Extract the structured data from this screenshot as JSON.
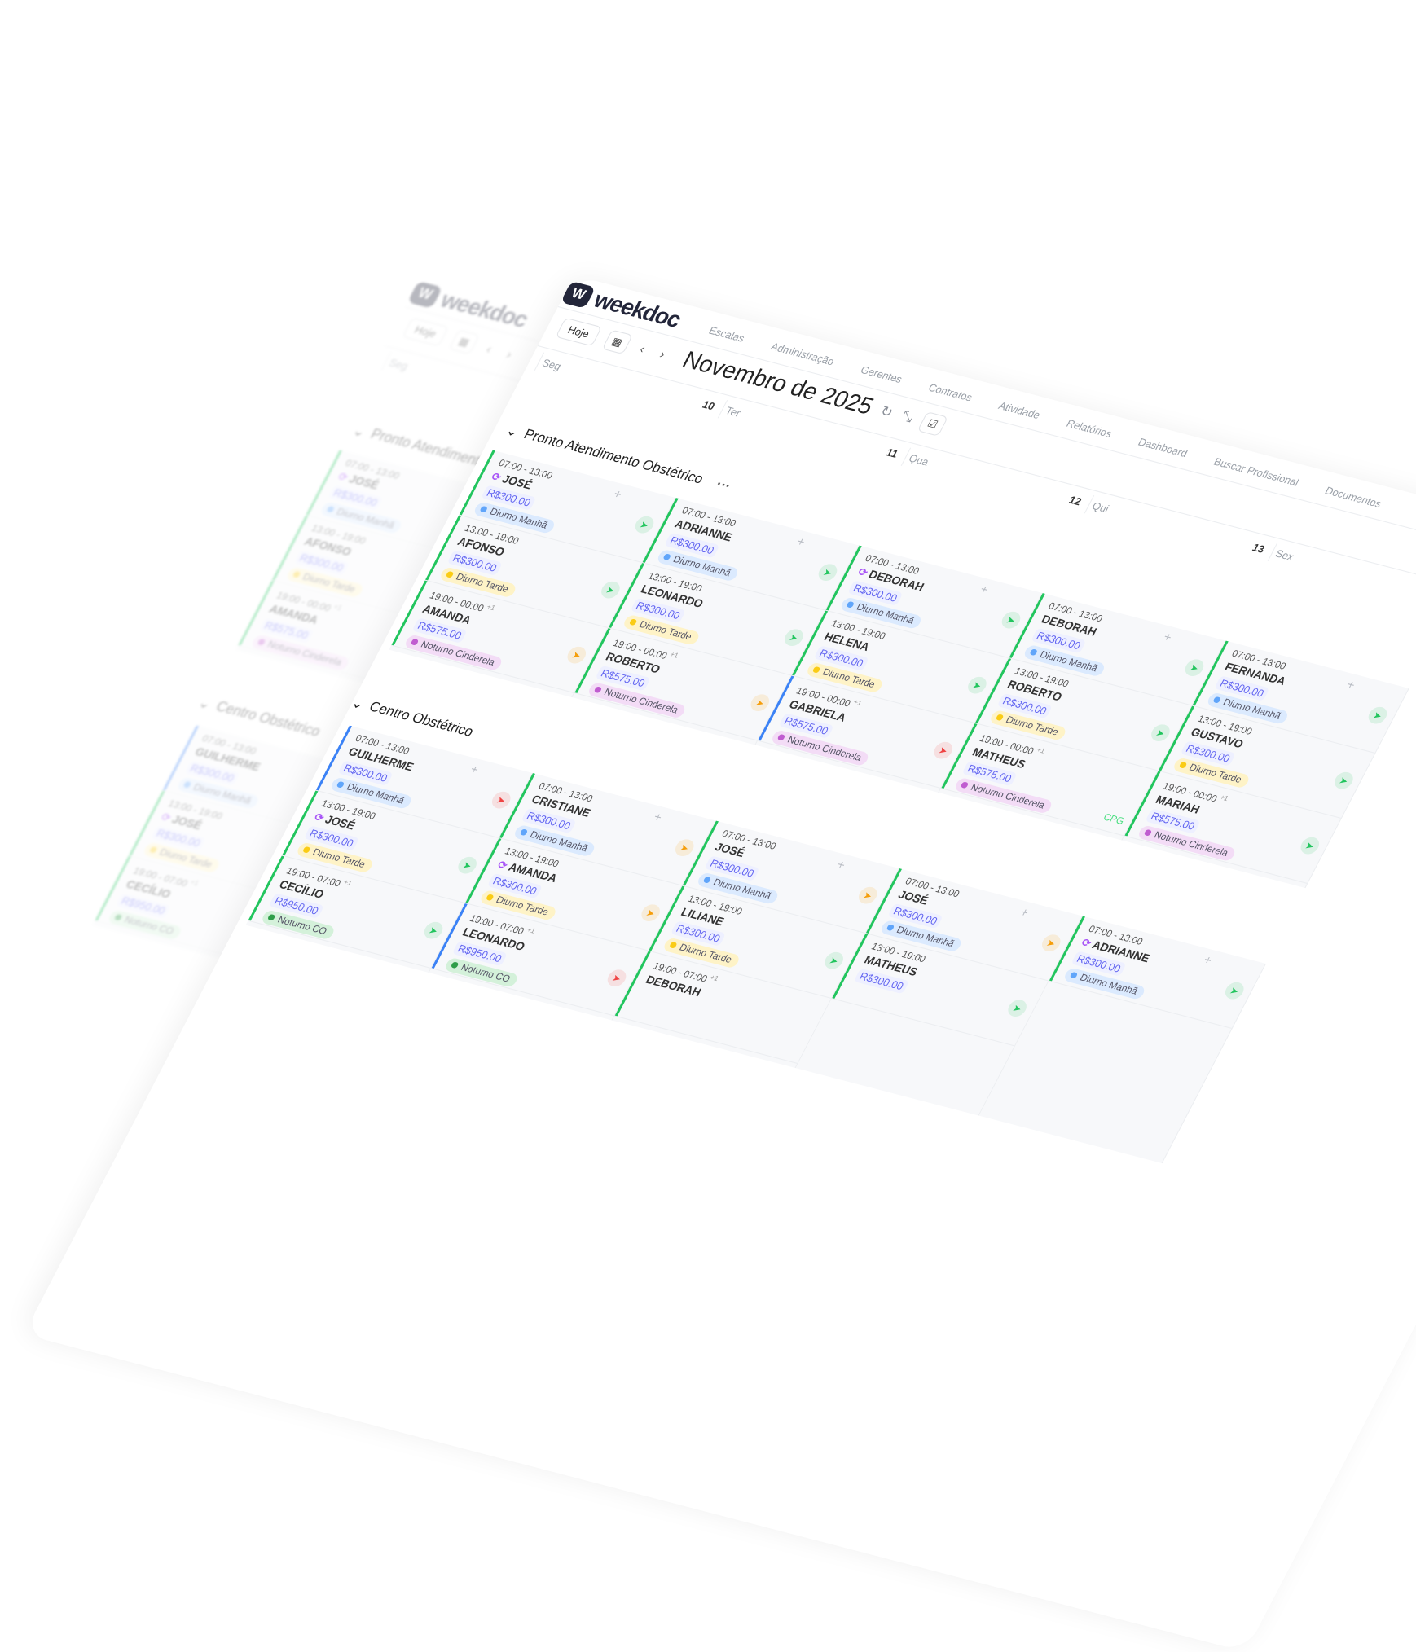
{
  "app": {
    "logo_mark": "W",
    "logo_text": "weekdoc"
  },
  "nav": [
    "Escalas",
    "Administração",
    "Gerentes",
    "Contratos",
    "Atividade",
    "Relatórios",
    "Dashboard",
    "Buscar Profissional",
    "Documentos"
  ],
  "toolbar": {
    "today": "Hoje",
    "prev": "‹",
    "next": "›",
    "title": "Novembro de 2025",
    "icons": [
      "calendar-icon",
      "refresh-icon",
      "compress-icon",
      "checklist-icon"
    ]
  },
  "days": [
    {
      "weekday": "Seg",
      "day": "10"
    },
    {
      "weekday": "Ter",
      "day": "11"
    },
    {
      "weekday": "Qua",
      "day": "12"
    },
    {
      "weekday": "Qui",
      "day": "13"
    },
    {
      "weekday": "Sex",
      "day": ""
    }
  ],
  "colors": {
    "green": "#22c55e",
    "blue": "#3b82f6",
    "orange": "#f59e0b",
    "red": "#ef4444",
    "tag_manha_bg": "#dbeafe",
    "tag_manha_dot": "#60a5fa",
    "tag_tarde_bg": "#fef3c7",
    "tag_tarde_dot": "#facc15",
    "tag_cinderela_bg": "#f3dcf6",
    "tag_cinderela_dot": "#c05cd0",
    "tag_co_bg": "#d4f1da",
    "tag_co_dot": "#2e9e48"
  },
  "sections": [
    {
      "title": "Pronto Atendimento Obstétrico",
      "more": "···",
      "columns": [
        {
          "shifts": [
            {
              "time": "07:00 - 13:00",
              "name": "JOSÉ",
              "swap": true,
              "price": "R$300.00",
              "tag": "Diurno Manhã",
              "kind": "manha",
              "bar": "green",
              "action": "green"
            },
            {
              "time": "13:00 - 19:00",
              "name": "AFONSO",
              "price": "R$300.00",
              "tag": "Diurno Tarde",
              "kind": "tarde",
              "bar": "green",
              "action": "green"
            },
            {
              "time": "19:00 - 00:00",
              "plus": "+1",
              "name": "AMANDA",
              "price": "R$575.00",
              "tag": "Noturno Cinderela",
              "kind": "cinderela",
              "bar": "green",
              "action": "orange"
            }
          ]
        },
        {
          "shifts": [
            {
              "time": "07:00 - 13:00",
              "name": "ADRIANNE",
              "price": "R$300.00",
              "tag": "Diurno Manhã",
              "kind": "manha",
              "bar": "green",
              "action": "green"
            },
            {
              "time": "13:00 - 19:00",
              "name": "LEONARDO",
              "price": "R$300.00",
              "tag": "Diurno Tarde",
              "kind": "tarde",
              "bar": "green",
              "action": "green"
            },
            {
              "time": "19:00 - 00:00",
              "plus": "+1",
              "name": "ROBERTO",
              "price": "R$575.00",
              "tag": "Noturno Cinderela",
              "kind": "cinderela",
              "bar": "green",
              "action": "orange"
            }
          ]
        },
        {
          "shifts": [
            {
              "time": "07:00 - 13:00",
              "name": "DEBORAH",
              "swap": true,
              "price": "R$300.00",
              "tag": "Diurno Manhã",
              "kind": "manha",
              "bar": "green",
              "action": "green"
            },
            {
              "time": "13:00 - 19:00",
              "name": "HELENA",
              "price": "R$300.00",
              "tag": "Diurno Tarde",
              "kind": "tarde",
              "bar": "green",
              "action": "green"
            },
            {
              "time": "19:00 - 00:00",
              "plus": "+1",
              "name": "GABRIELA",
              "price": "R$575.00",
              "tag": "Noturno Cinderela",
              "kind": "cinderela",
              "bar": "blue",
              "action": "red"
            }
          ]
        },
        {
          "shifts": [
            {
              "time": "07:00 - 13:00",
              "name": "DEBORAH",
              "price": "R$300.00",
              "tag": "Diurno Manhã",
              "kind": "manha",
              "bar": "green",
              "action": "green"
            },
            {
              "time": "13:00 - 19:00",
              "name": "ROBERTO",
              "price": "R$300.00",
              "tag": "Diurno Tarde",
              "kind": "tarde",
              "bar": "green",
              "action": "green"
            },
            {
              "time": "19:00 - 00:00",
              "plus": "+1",
              "name": "MATHEUS",
              "price": "R$575.00",
              "tag": "Noturno Cinderela",
              "kind": "cinderela",
              "bar": "green",
              "badge": "CPG"
            }
          ]
        },
        {
          "shifts": [
            {
              "time": "07:00 - 13:00",
              "name": "FERNANDA",
              "price": "R$300.00",
              "tag": "Diurno Manhã",
              "kind": "manha",
              "bar": "green",
              "action": "green"
            },
            {
              "time": "13:00 - 19:00",
              "name": "GUSTAVO",
              "price": "R$300.00",
              "tag": "Diurno Tarde",
              "kind": "tarde",
              "bar": "green",
              "action": "green"
            },
            {
              "time": "19:00 - 00:00",
              "plus": "+1",
              "name": "MARIAH",
              "price": "R$575.00",
              "tag": "Noturno Cinderela",
              "kind": "cinderela",
              "bar": "green",
              "action": "green"
            }
          ]
        }
      ]
    },
    {
      "title": "Centro Obstétrico",
      "columns": [
        {
          "shifts": [
            {
              "time": "07:00 - 13:00",
              "name": "GUILHERME",
              "price": "R$300.00",
              "tag": "Diurno Manhã",
              "kind": "manha",
              "bar": "blue",
              "action": "red"
            },
            {
              "time": "13:00 - 19:00",
              "name": "JOSÉ",
              "swap": true,
              "price": "R$300.00",
              "tag": "Diurno Tarde",
              "kind": "tarde",
              "bar": "green",
              "action": "green"
            },
            {
              "time": "19:00 - 07:00",
              "plus": "+1",
              "name": "CECÍLIO",
              "price": "R$950.00",
              "tag": "Noturno CO",
              "kind": "co",
              "bar": "green",
              "action": "green"
            }
          ]
        },
        {
          "shifts": [
            {
              "time": "07:00 - 13:00",
              "name": "CRISTIANE",
              "price": "R$300.00",
              "tag": "Diurno Manhã",
              "kind": "manha",
              "bar": "green",
              "action": "orange"
            },
            {
              "time": "13:00 - 19:00",
              "name": "AMANDA",
              "swap": true,
              "price": "R$300.00",
              "tag": "Diurno Tarde",
              "kind": "tarde",
              "bar": "green",
              "action": "orange"
            },
            {
              "time": "19:00 - 07:00",
              "plus": "+1",
              "name": "LEONARDO",
              "price": "R$950.00",
              "tag": "Noturno CO",
              "kind": "co",
              "bar": "blue",
              "action": "red"
            }
          ]
        },
        {
          "shifts": [
            {
              "time": "07:00 - 13:00",
              "name": "JOSÉ",
              "price": "R$300.00",
              "tag": "Diurno Manhã",
              "kind": "manha",
              "bar": "green",
              "action": "orange"
            },
            {
              "time": "13:00 - 19:00",
              "name": "LILIANE",
              "price": "R$300.00",
              "tag": "Diurno Tarde",
              "kind": "tarde",
              "bar": "green",
              "action": "green"
            },
            {
              "time": "19:00 - 07:00",
              "plus": "+1",
              "name": "DEBORAH",
              "bar": "green"
            }
          ]
        },
        {
          "shifts": [
            {
              "time": "07:00 - 13:00",
              "name": "JOSÉ",
              "price": "R$300.00",
              "tag": "Diurno Manhã",
              "kind": "manha",
              "bar": "green",
              "action": "orange"
            },
            {
              "time": "13:00 - 19:00",
              "name": "MATHEUS",
              "price": "R$300.00",
              "bar": "green",
              "action": "green"
            }
          ]
        },
        {
          "shifts": [
            {
              "time": "07:00 - 13:00",
              "name": "ADRIANNE",
              "swap": true,
              "price": "R$300.00",
              "tag": "Diurno Manhã",
              "kind": "manha",
              "bar": "green",
              "action": "green"
            }
          ]
        }
      ]
    }
  ]
}
